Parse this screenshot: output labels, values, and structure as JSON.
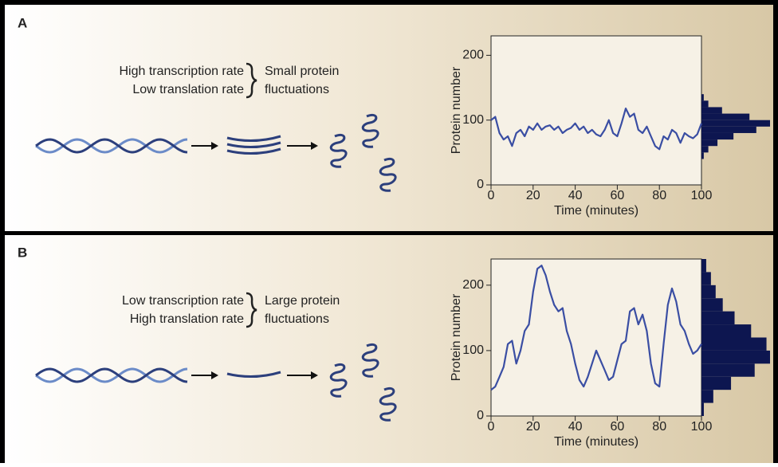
{
  "panels": [
    {
      "label": "A",
      "conditions": [
        "High transcription rate",
        "Low translation rate"
      ],
      "outcome": [
        "Small protein",
        "fluctuations"
      ]
    },
    {
      "label": "B",
      "conditions": [
        "Low transcription rate",
        "High translation rate"
      ],
      "outcome": [
        "Large protein",
        "fluctuations"
      ]
    }
  ],
  "chart_data": [
    {
      "type": "line",
      "xlabel": "Time (minutes)",
      "ylabel": "Protein number",
      "x": [
        0,
        2,
        4,
        6,
        8,
        10,
        12,
        14,
        16,
        18,
        20,
        22,
        24,
        26,
        28,
        30,
        32,
        34,
        36,
        38,
        40,
        42,
        44,
        46,
        48,
        50,
        52,
        54,
        56,
        58,
        60,
        62,
        64,
        66,
        68,
        70,
        72,
        74,
        76,
        78,
        80,
        82,
        84,
        86,
        88,
        90,
        92,
        94,
        96,
        98,
        100
      ],
      "series": [
        {
          "color": "#3a4ea3",
          "values": [
            100,
            105,
            80,
            70,
            75,
            60,
            80,
            85,
            75,
            90,
            85,
            95,
            85,
            90,
            92,
            85,
            90,
            80,
            85,
            88,
            95,
            85,
            90,
            80,
            85,
            78,
            75,
            85,
            100,
            80,
            75,
            95,
            118,
            105,
            110,
            85,
            80,
            90,
            75,
            60,
            55,
            75,
            70,
            85,
            80,
            65,
            80,
            75,
            72,
            78,
            95
          ]
        }
      ],
      "xlim": [
        0,
        100
      ],
      "xticks": [
        0,
        20,
        40,
        60,
        80,
        100
      ],
      "ylim": [
        0,
        230
      ],
      "yticks": [
        0,
        100,
        200
      ],
      "histogram": {
        "color": "#0d1650",
        "bins": [
          40,
          50,
          60,
          70,
          80,
          90,
          100,
          110,
          120,
          130,
          140
        ],
        "counts": [
          2,
          6,
          14,
          28,
          48,
          60,
          42,
          18,
          6,
          2
        ]
      }
    },
    {
      "type": "line",
      "xlabel": "Time (minutes)",
      "ylabel": "Protein number",
      "x": [
        0,
        2,
        4,
        6,
        8,
        10,
        12,
        14,
        16,
        18,
        20,
        22,
        24,
        26,
        28,
        30,
        32,
        34,
        36,
        38,
        40,
        42,
        44,
        46,
        48,
        50,
        52,
        54,
        56,
        58,
        60,
        62,
        64,
        66,
        68,
        70,
        72,
        74,
        76,
        78,
        80,
        82,
        84,
        86,
        88,
        90,
        92,
        94,
        96,
        98,
        100
      ],
      "series": [
        {
          "color": "#3a4ea3",
          "values": [
            40,
            45,
            60,
            75,
            110,
            115,
            80,
            100,
            130,
            140,
            190,
            225,
            230,
            215,
            190,
            170,
            160,
            165,
            130,
            110,
            80,
            55,
            45,
            60,
            80,
            100,
            85,
            70,
            55,
            60,
            85,
            110,
            115,
            160,
            165,
            140,
            155,
            130,
            80,
            50,
            45,
            110,
            170,
            195,
            175,
            140,
            130,
            110,
            95,
            100,
            110
          ]
        }
      ],
      "xlim": [
        0,
        100
      ],
      "xticks": [
        0,
        20,
        40,
        60,
        80,
        100
      ],
      "ylim": [
        0,
        240
      ],
      "yticks": [
        0,
        100,
        200
      ],
      "histogram": {
        "color": "#0d1650",
        "bins": [
          0,
          20,
          40,
          60,
          80,
          100,
          120,
          140,
          160,
          180,
          200,
          220,
          240
        ],
        "counts": [
          2,
          10,
          25,
          45,
          58,
          55,
          42,
          28,
          18,
          12,
          8,
          4
        ]
      }
    }
  ]
}
